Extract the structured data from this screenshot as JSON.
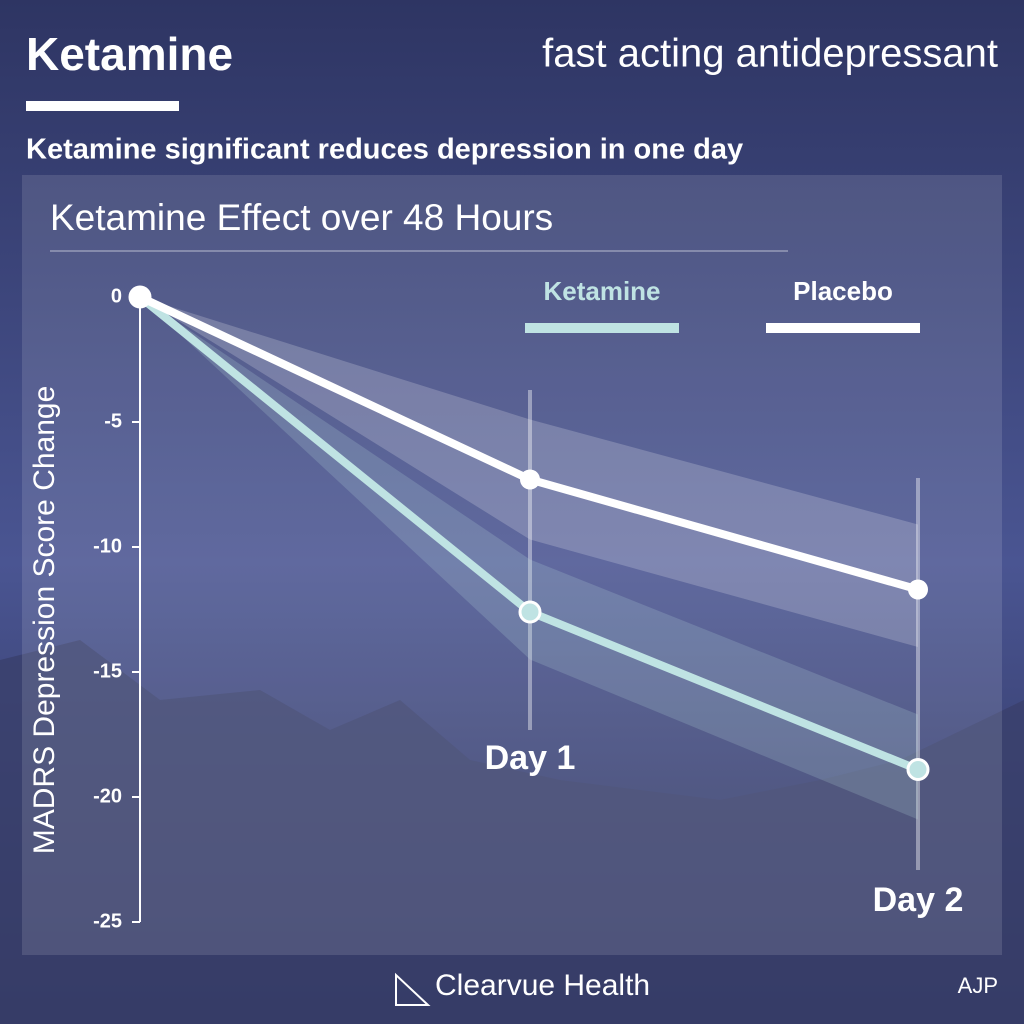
{
  "header": {
    "title": "Ketamine",
    "subtitle": "fast acting antidepressant",
    "headline": "Ketamine significant reduces depression in one day"
  },
  "chart_data": {
    "type": "line",
    "title": "Ketamine Effect over 48 Hours",
    "y_label": "MADRS Depression Score Change",
    "categories": [
      null,
      "Day 1",
      "Day 2"
    ],
    "series": [
      {
        "name": "Ketamine",
        "color": "#bfe3e3",
        "values": [
          0,
          -12.6,
          -18.9
        ],
        "upper": [
          0,
          -10.5,
          -16.7
        ],
        "lower": [
          0,
          -14.5,
          -20.9
        ]
      },
      {
        "name": "Placebo",
        "color": "#ffffff",
        "values": [
          0,
          -7.3,
          -11.7
        ],
        "upper": [
          0,
          -4.9,
          -9.1
        ],
        "lower": [
          0,
          -9.7,
          -14.0
        ]
      }
    ],
    "ylim": [
      0,
      -25
    ],
    "yticks": [
      0,
      -5,
      -10,
      -15,
      -20,
      -25
    ]
  },
  "footer": {
    "brand": "Clearvue Health",
    "source": "AJP"
  }
}
